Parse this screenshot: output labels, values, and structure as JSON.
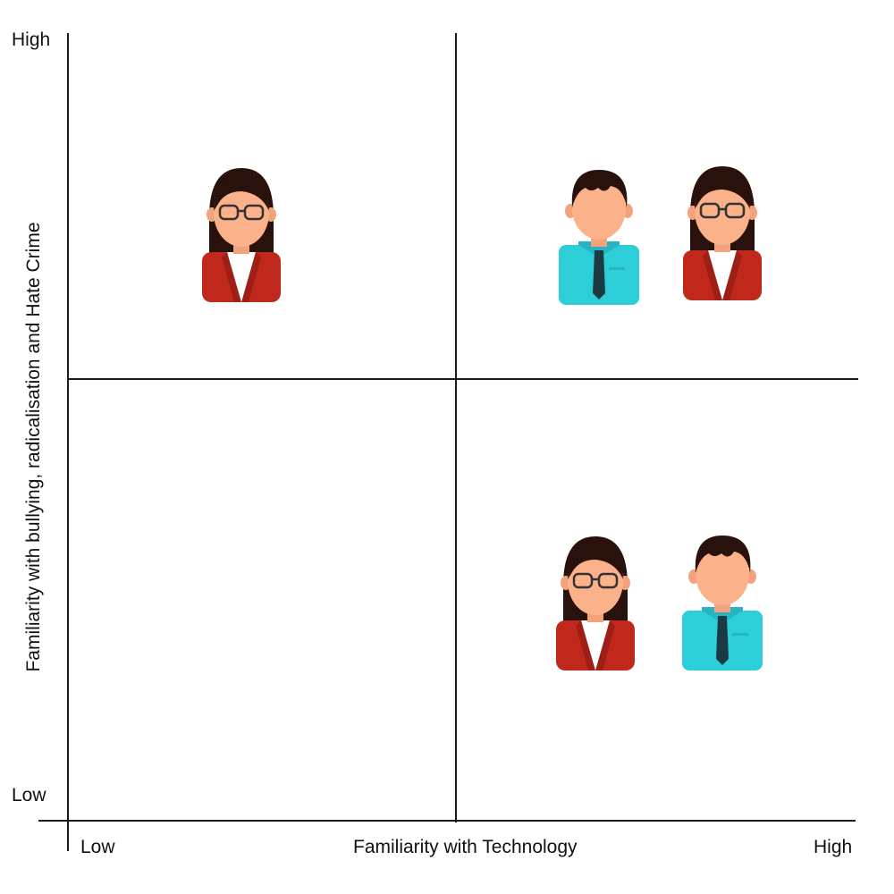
{
  "axes": {
    "x_label": "Familiarity with Technology",
    "x_low": "Low",
    "x_high": "High",
    "y_label": "Familiarity with bullying, radicalisation and Hate Crime",
    "y_low": "Low",
    "y_high": "High"
  },
  "colors": {
    "line": "#1a1a1a",
    "hair": "#2a120c",
    "skin": "#fbb28a",
    "ear": "#f2a37c",
    "blazer": "#c0281c",
    "blazer_dark": "#9e1f15",
    "shirt_white": "#ffffff",
    "shirt_cyan": "#2ccfd8",
    "collar_cyan": "#27b3c2",
    "tie": "#1c3a44",
    "glasses": "#333333"
  },
  "quadrants": [
    {
      "name": "top-left",
      "people": [
        {
          "type": "woman",
          "icon": "businesswoman-icon"
        }
      ]
    },
    {
      "name": "top-right",
      "people": [
        {
          "type": "man",
          "icon": "businessman-icon"
        },
        {
          "type": "woman",
          "icon": "businesswoman-icon"
        }
      ]
    },
    {
      "name": "bottom-right",
      "people": [
        {
          "type": "woman",
          "icon": "businesswoman-icon"
        },
        {
          "type": "man",
          "icon": "businessman-icon"
        }
      ]
    },
    {
      "name": "bottom-left",
      "people": []
    }
  ]
}
